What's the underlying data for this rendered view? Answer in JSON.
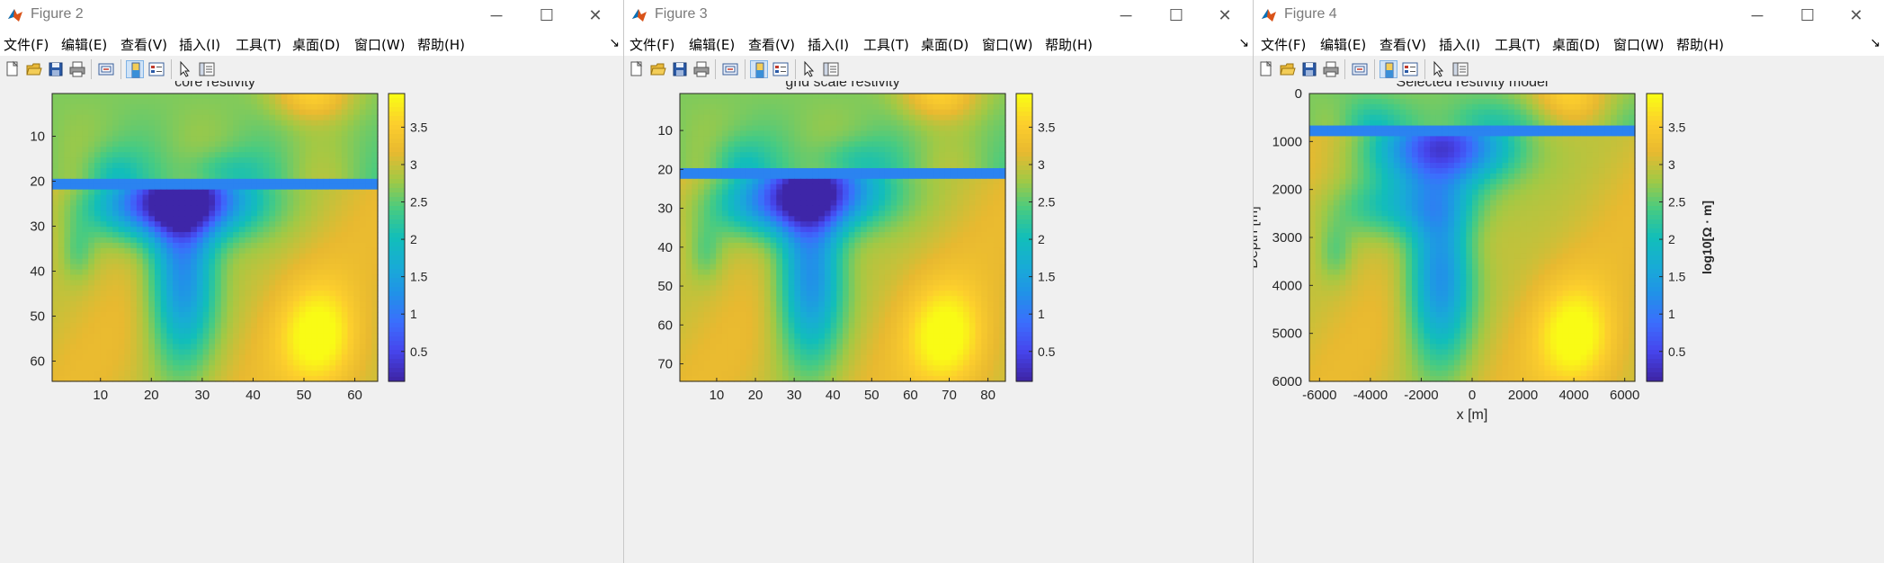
{
  "windows": [
    {
      "title": "Figure 2",
      "menus": [
        "文件(F)",
        "编辑(E)",
        "查看(V)",
        "插入(I)",
        "工具(T)",
        "桌面(D)",
        "窗口(W)",
        "帮助(H)"
      ],
      "menu_arrow": "↘",
      "plot": {
        "title": "core restivity",
        "xticks": [
          "10",
          "20",
          "30",
          "40",
          "50",
          "60"
        ],
        "yticks": [
          "10",
          "20",
          "30",
          "40",
          "50",
          "60"
        ],
        "xlabel": "",
        "ylabel": "",
        "xlim": [
          0.5,
          64.5
        ],
        "ylim": [
          0.5,
          64.5
        ],
        "interface_y": 19.5,
        "colorbar_ticks": [
          "0.5",
          "1",
          "1.5",
          "2",
          "2.5",
          "3",
          "3.5"
        ],
        "colorbar_label": ""
      }
    },
    {
      "title": "Figure 3",
      "menus": [
        "文件(F)",
        "编辑(E)",
        "查看(V)",
        "插入(I)",
        "工具(T)",
        "桌面(D)",
        "窗口(W)",
        "帮助(H)"
      ],
      "menu_arrow": "↘",
      "plot": {
        "title": "grid scale restivity",
        "xticks": [
          "10",
          "20",
          "30",
          "40",
          "50",
          "60",
          "70",
          "80"
        ],
        "yticks": [
          "10",
          "20",
          "30",
          "40",
          "50",
          "60",
          "70"
        ],
        "xlabel": "",
        "ylabel": "",
        "xlim": [
          0.5,
          84.5
        ],
        "ylim": [
          0.5,
          74.5
        ],
        "interface_y": 19.8,
        "colorbar_ticks": [
          "0.5",
          "1",
          "1.5",
          "2",
          "2.5",
          "3",
          "3.5"
        ],
        "colorbar_label": ""
      }
    },
    {
      "title": "Figure 4",
      "menus": [
        "文件(F)",
        "编辑(E)",
        "查看(V)",
        "插入(I)",
        "工具(T)",
        "桌面(D)",
        "窗口(W)",
        "帮助(H)"
      ],
      "menu_arrow": "↘",
      "plot": {
        "title": "Selected restivity model",
        "xticks": [
          "-6000",
          "-4000",
          "-2000",
          "0",
          "2000",
          "4000",
          "6000"
        ],
        "yticks": [
          "0",
          "1000",
          "2000",
          "3000",
          "4000",
          "5000",
          "6000"
        ],
        "xlabel": "x [m]",
        "ylabel": "Depth [m]",
        "xlim": [
          -6400,
          6400
        ],
        "ylim": [
          0,
          6000
        ],
        "interface_y": 760,
        "colorbar_ticks": [
          "0.5",
          "1",
          "1.5",
          "2",
          "2.5",
          "3",
          "3.5"
        ],
        "colorbar_label": "log10[Ω · m]"
      }
    }
  ],
  "colors": {
    "cmap_low": "#3e26a8",
    "cmap_mid": "#18b7c9",
    "cmap_high": "#f9fb15"
  },
  "chart_data": [
    {
      "type": "heatmap",
      "title": "core restivity",
      "x_range": [
        1,
        64
      ],
      "y_range": [
        1,
        64
      ],
      "y_direction": "down",
      "color_range": [
        0.1,
        3.95
      ],
      "color_ticks": [
        0.5,
        1,
        1.5,
        2,
        2.5,
        3,
        3.5
      ]
    },
    {
      "type": "heatmap",
      "title": "grid scale restivity",
      "x_range": [
        1,
        84
      ],
      "y_range": [
        1,
        74
      ],
      "y_direction": "down",
      "color_range": [
        0.1,
        3.95
      ],
      "color_ticks": [
        0.5,
        1,
        1.5,
        2,
        2.5,
        3,
        3.5
      ]
    },
    {
      "type": "heatmap",
      "title": "Selected restivity model",
      "xlabel": "x [m]",
      "ylabel": "Depth [m]",
      "x_range": [
        -6400,
        6400
      ],
      "y_range": [
        0,
        6000
      ],
      "y_direction": "down",
      "color_range": [
        0.1,
        3.95
      ],
      "color_ticks": [
        0.5,
        1,
        1.5,
        2,
        2.5,
        3,
        3.5
      ],
      "colorbar_label": "log10[Ω · m]"
    }
  ]
}
